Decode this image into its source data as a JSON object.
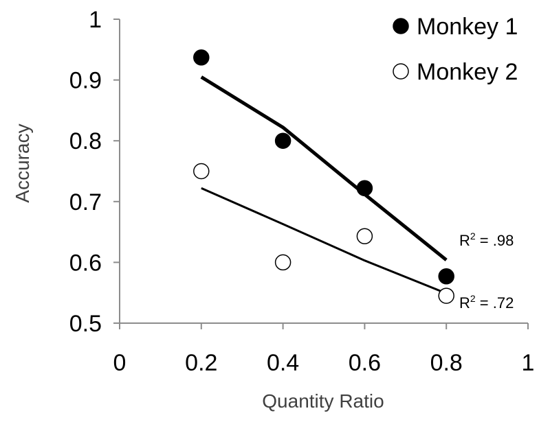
{
  "chart_data": {
    "type": "scatter",
    "xlabel": "Quantity Ratio",
    "ylabel": "Accuracy",
    "xlim": [
      0,
      1
    ],
    "ylim": [
      0.5,
      1
    ],
    "x_ticks": [
      "0",
      "0.2",
      "0.4",
      "0.6",
      "0.8",
      "1"
    ],
    "y_ticks": [
      "0.5",
      "0.6",
      "0.7",
      "0.8",
      "0.9",
      "1"
    ],
    "grid": false,
    "legend_position": "top-right",
    "series": [
      {
        "name": "Monkey 1",
        "marker": "filled-circle",
        "color": "#000000",
        "x": [
          0.2,
          0.4,
          0.6,
          0.8
        ],
        "y": [
          0.937,
          0.8,
          0.722,
          0.577
        ],
        "trend": {
          "x": [
            0.2,
            0.4,
            0.6,
            0.8
          ],
          "y": [
            0.905,
            0.822,
            0.712,
            0.604
          ]
        },
        "r2_label": ".98"
      },
      {
        "name": "Monkey 2",
        "marker": "open-circle",
        "color": "#000000",
        "x": [
          0.2,
          0.4,
          0.6,
          0.8
        ],
        "y": [
          0.75,
          0.6,
          0.643,
          0.545
        ],
        "trend": {
          "x": [
            0.2,
            0.4,
            0.6,
            0.8
          ],
          "y": [
            0.722,
            0.663,
            0.603,
            0.549
          ]
        },
        "r2_label": ".72"
      }
    ],
    "annotations": [
      {
        "prefix": "R",
        "sup": "2",
        "text": " = .98",
        "series": 0
      },
      {
        "prefix": "R",
        "sup": "2",
        "text": " = .72",
        "series": 1
      }
    ]
  }
}
